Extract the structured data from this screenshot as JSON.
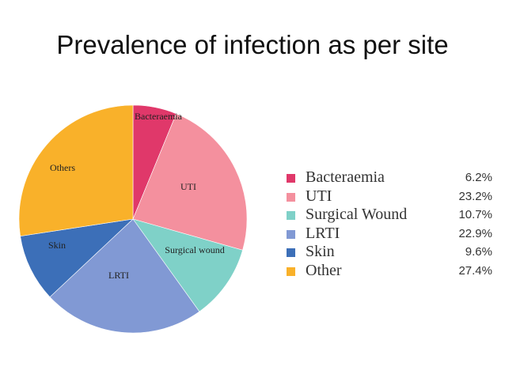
{
  "title": "Prevalence of infection as per site",
  "chart_data": {
    "type": "pie",
    "unit": "%",
    "slices": [
      {
        "label": "Bacteraemia",
        "value": 6.2,
        "color": "#e0386a"
      },
      {
        "label": "UTI",
        "value": 23.2,
        "color": "#f4909e"
      },
      {
        "label": "Surgical wound",
        "value": 10.7,
        "color": "#7fd1c8"
      },
      {
        "label": "LRTI",
        "value": 22.9,
        "color": "#8199d4"
      },
      {
        "label": "Skin",
        "value": 9.6,
        "color": "#3c6fb8"
      },
      {
        "label": "Others",
        "value": 27.4,
        "color": "#f9b12a"
      }
    ],
    "legend": {
      "placement": "right",
      "entries": [
        {
          "name": "Bacteraemia",
          "value_label": "6.2%",
          "color": "#e0386a"
        },
        {
          "name": "UTI",
          "value_label": "23.2%",
          "color": "#f4909e"
        },
        {
          "name": "Surgical Wound",
          "value_label": "10.7%",
          "color": "#7fd1c8"
        },
        {
          "name": "LRTI",
          "value_label": "22.9%",
          "color": "#8199d4"
        },
        {
          "name": "Skin",
          "value_label": "9.6%",
          "color": "#3c6fb8"
        },
        {
          "name": "Other",
          "value_label": "27.4%",
          "color": "#f9b12a"
        }
      ]
    }
  }
}
